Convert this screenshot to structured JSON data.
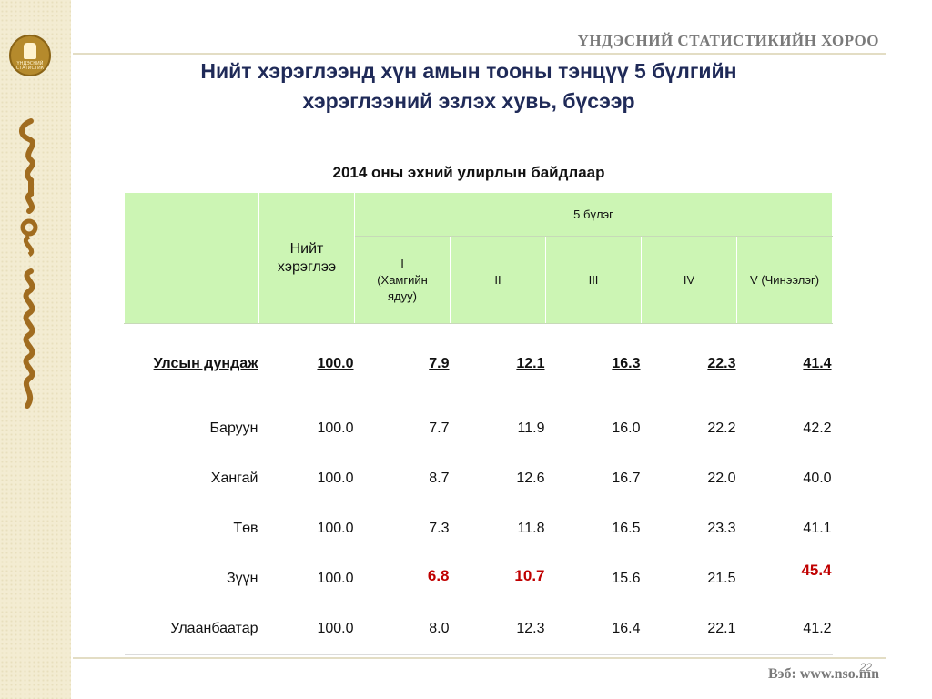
{
  "header": {
    "org_name": "ҮНДЭСНИЙ СТАТИСТИКИЙН ХОРОО",
    "logo_text": "ҮНДЭСНИЙ СТАТИСТИК"
  },
  "title_line1": "Нийт хэрэглээнд хүн амын тооны тэнцүү 5 бүлгийн",
  "title_line2": "хэрэглээний эзлэх хувь, бүсээр",
  "subtitle": "2014 оны эхний улирлын байдлаар",
  "table": {
    "total_header_line1": "Нийт",
    "total_header_line2": "хэрэглээ",
    "group_header": "5 бүлэг",
    "quintiles": [
      {
        "line1": "I",
        "line2": "(Хамгийн",
        "line3": "ядуу)"
      },
      {
        "line1": "II"
      },
      {
        "line1": "III"
      },
      {
        "line1": "IV"
      },
      {
        "line1": "V (Чинээлэг)"
      }
    ],
    "rows": [
      {
        "region": "Улсын дундаж",
        "total": "100.0",
        "q1": "7.9",
        "q2": "12.1",
        "q3": "16.3",
        "q4": "22.3",
        "q5": "41.4"
      },
      {
        "region": "Баруун",
        "total": "100.0",
        "q1": "7.7",
        "q2": "11.9",
        "q3": "16.0",
        "q4": "22.2",
        "q5": "42.2"
      },
      {
        "region": "Хангай",
        "total": "100.0",
        "q1": "8.7",
        "q2": "12.6",
        "q3": "16.7",
        "q4": "22.0",
        "q5": "40.0"
      },
      {
        "region": "Төв",
        "total": "100.0",
        "q1": "7.3",
        "q2": "11.8",
        "q3": "16.5",
        "q4": "23.3",
        "q5": "41.1"
      },
      {
        "region": "Зүүн",
        "total": "100.0",
        "q1": "6.8",
        "q2": "10.7",
        "q3": "15.6",
        "q4": "21.5",
        "q5": "45.4"
      },
      {
        "region": "Улаанбаатар",
        "total": "100.0",
        "q1": "8.0",
        "q2": "12.3",
        "q3": "16.4",
        "q4": "22.1",
        "q5": "41.2"
      }
    ]
  },
  "footer": {
    "page_number": "22",
    "website": "Вэб: www.nso.mn"
  },
  "colors": {
    "header_fill": "#ccf5b4",
    "highlight": "#c00000",
    "title": "#1f2a58",
    "strip": "#f3ecd2"
  }
}
